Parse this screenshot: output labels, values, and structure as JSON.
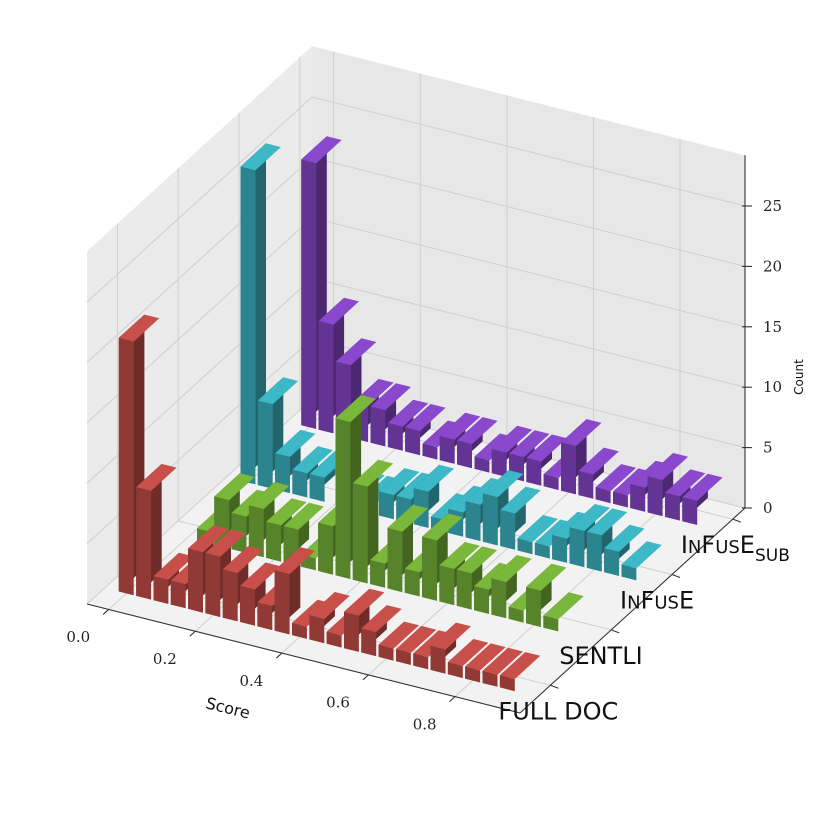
{
  "chart_data": {
    "type": "bar",
    "projection": "3d",
    "title": "",
    "xlabel": "Score",
    "ylabel": "",
    "zlabel": "Count",
    "xlim": [
      -0.05,
      0.95
    ],
    "zlim": [
      0,
      25
    ],
    "x_ticks": [
      "0.0",
      "0.2",
      "0.4",
      "0.6",
      "0.8"
    ],
    "z_ticks": [
      "0",
      "5",
      "10",
      "15",
      "20",
      "25"
    ],
    "grid": true,
    "bin_width": 0.04,
    "x": [
      0.0,
      0.04,
      0.08,
      0.12,
      0.16,
      0.2,
      0.24,
      0.28,
      0.32,
      0.36,
      0.4,
      0.44,
      0.48,
      0.52,
      0.56,
      0.6,
      0.64,
      0.68,
      0.72,
      0.76,
      0.8,
      0.84,
      0.88
    ],
    "series": [
      {
        "name": "FULL DOC",
        "label_parts": [
          {
            "t": "FULL DOC"
          }
        ],
        "color": "#c9504a",
        "values": [
          21,
          9,
          2,
          2,
          5,
          5,
          4,
          3,
          2,
          5,
          1,
          2,
          1,
          3,
          2,
          1,
          1,
          1,
          2,
          1,
          1,
          1,
          1
        ]
      },
      {
        "name": "SENTLI",
        "label_parts": [
          {
            "t": "SENTLI"
          }
        ],
        "color": "#79b83b",
        "values": [
          0,
          1,
          4,
          3,
          4,
          3,
          3,
          1,
          4,
          13,
          8,
          2,
          5,
          2,
          5,
          3,
          3,
          2,
          3,
          1,
          3,
          1,
          0
        ]
      },
      {
        "name": "InFusE",
        "label_parts": [
          {
            "t": "I"
          },
          {
            "t": "N",
            "sc": true
          },
          {
            "t": "F"
          },
          {
            "t": "US",
            "sc": true
          },
          {
            "t": "E"
          }
        ],
        "color": "#3db8c6",
        "values": [
          26,
          7,
          3,
          2,
          2,
          0,
          1,
          1,
          2,
          2,
          3,
          1,
          2,
          3,
          4,
          3,
          1,
          1,
          2,
          3,
          3,
          2,
          1
        ]
      },
      {
        "name": "InFusE_SUB",
        "label_parts": [
          {
            "t": "I"
          },
          {
            "t": "N",
            "sc": true
          },
          {
            "t": "F"
          },
          {
            "t": "US",
            "sc": true
          },
          {
            "t": "E"
          },
          {
            "t": "SUB",
            "sub": true
          }
        ],
        "color": "#8a48cc",
        "values": [
          22,
          9,
          6,
          3,
          3,
          2,
          2,
          1,
          2,
          2,
          1,
          2,
          2,
          2,
          1,
          4,
          2,
          1,
          1,
          2,
          3,
          2,
          2
        ]
      }
    ]
  }
}
